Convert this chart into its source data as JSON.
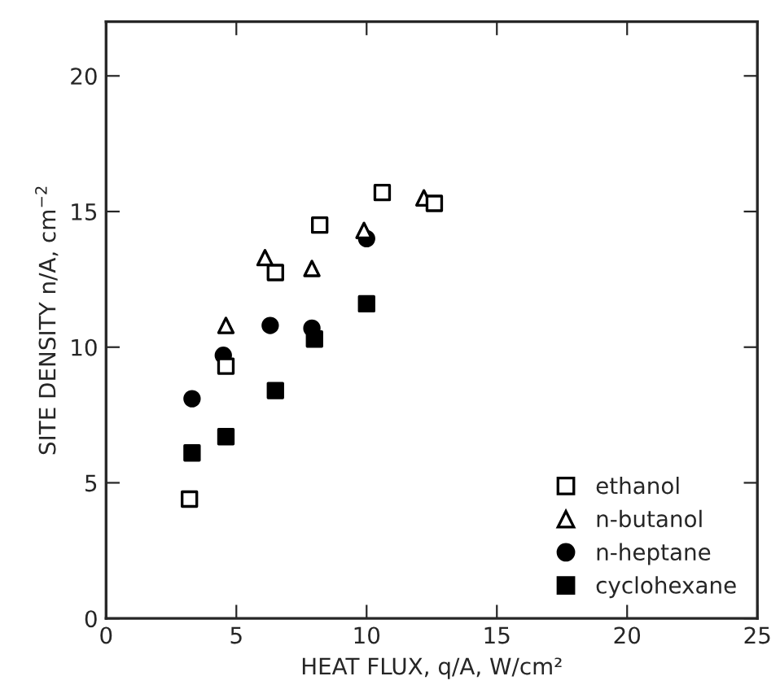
{
  "chart_data": {
    "type": "scatter",
    "xlabel": "HEAT FLUX, q/A, W/cm²",
    "ylabel": "SITE DENSITY n/A, cm$^{−2}$",
    "xlim": [
      0,
      25
    ],
    "ylim": [
      0,
      22
    ],
    "xticks": [
      0,
      5,
      10,
      15,
      20,
      25
    ],
    "yticks": [
      0,
      5,
      10,
      15,
      20
    ],
    "grid": false,
    "legend": "bottom right",
    "series": [
      {
        "name": "ethanol",
        "color": "#000000",
        "marker": "square",
        "x": [
          3.2,
          4.6,
          6.5,
          8.2,
          10.6,
          12.6
        ],
        "values": [
          4.4,
          9.3,
          12.75,
          14.5,
          15.7,
          15.3
        ]
      },
      {
        "name": "n-butanol",
        "color": "#000000",
        "marker": "triangle",
        "x": [
          4.6,
          6.1,
          7.9,
          9.9,
          12.2
        ],
        "values": [
          10.8,
          13.3,
          12.9,
          14.3,
          15.5
        ]
      },
      {
        "name": "n-heptane",
        "color": "#000000",
        "marker": "circle",
        "x": [
          3.3,
          4.5,
          6.3,
          7.9,
          10.0
        ],
        "values": [
          8.1,
          9.7,
          10.8,
          10.7,
          14.0
        ]
      },
      {
        "name": "cyclohexane",
        "color": "#000000",
        "marker": "square",
        "x": [
          3.3,
          4.6,
          6.5,
          8.0,
          10.0
        ],
        "values": [
          6.1,
          6.7,
          8.4,
          10.3,
          11.6
        ]
      }
    ]
  }
}
